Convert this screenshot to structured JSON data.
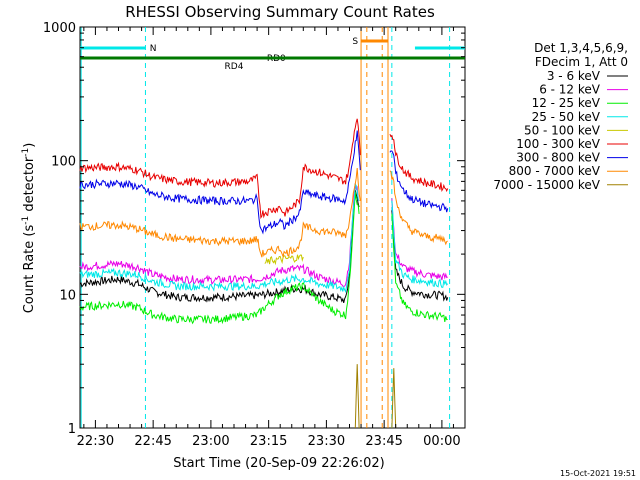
{
  "chart_data": {
    "type": "line",
    "title": "RHESSI Observing Summary Count Rates",
    "xlabel": "Start Time (20-Sep-09 22:26:02)",
    "ylabel_main": "Count Rate (s",
    "ylabel_sup1": "-1",
    "ylabel_mid": " detector",
    "ylabel_sup2": "-1",
    "ylabel_end": ")",
    "yscale": "log",
    "ylim": [
      1,
      1000
    ],
    "xlim_minutes": [
      0,
      100
    ],
    "xticks": [
      {
        "m": 4,
        "label": "22:30"
      },
      {
        "m": 19,
        "label": "22:45"
      },
      {
        "m": 34,
        "label": "23:00"
      },
      {
        "m": 49,
        "label": "23:15"
      },
      {
        "m": 64,
        "label": "23:30"
      },
      {
        "m": 79,
        "label": "23:45"
      },
      {
        "m": 94,
        "label": "00:00"
      }
    ],
    "yticks": [
      {
        "v": 1,
        "label": "1"
      },
      {
        "v": 10,
        "label": "10"
      },
      {
        "v": 100,
        "label": "100"
      },
      {
        "v": 1000,
        "label": "1000"
      }
    ],
    "legend_header": [
      "Det 1,3,4,5,6,9,",
      "FDecim 1, Att 0"
    ],
    "series": [
      {
        "name": "3 - 6 keV",
        "color": "#000000",
        "points": [
          [
            0,
            12
          ],
          [
            10,
            13
          ],
          [
            15,
            12
          ],
          [
            19,
            10.5
          ],
          [
            25,
            9.5
          ],
          [
            35,
            9.5
          ],
          [
            46,
            9.8
          ],
          [
            48,
            10
          ],
          [
            52,
            10.5
          ],
          [
            55,
            11
          ],
          [
            58,
            11
          ],
          [
            62,
            10
          ],
          [
            66,
            9.5
          ],
          [
            69,
            9
          ],
          [
            70,
            14
          ],
          [
            71.5,
            60
          ],
          [
            72.5,
            45
          ]
        ]
      },
      {
        "name": "6 - 12 keV",
        "color": "#e800e8",
        "points": [
          [
            0,
            16
          ],
          [
            10,
            17
          ],
          [
            15,
            16
          ],
          [
            19,
            14
          ],
          [
            25,
            13
          ],
          [
            35,
            12.8
          ],
          [
            46,
            13
          ],
          [
            48,
            13.5
          ],
          [
            52,
            15
          ],
          [
            55,
            15.5
          ],
          [
            58,
            15.5
          ],
          [
            62,
            13.5
          ],
          [
            66,
            12.5
          ],
          [
            69,
            12
          ],
          [
            70,
            18
          ],
          [
            71.5,
            70
          ],
          [
            72.5,
            50
          ]
        ]
      },
      {
        "name": "12 - 25 keV",
        "color": "#00ee00",
        "points": [
          [
            0,
            8
          ],
          [
            10,
            8.5
          ],
          [
            15,
            8
          ],
          [
            19,
            7
          ],
          [
            25,
            6.5
          ],
          [
            35,
            6.5
          ],
          [
            46,
            7
          ],
          [
            48,
            8
          ],
          [
            52,
            10
          ],
          [
            55,
            11
          ],
          [
            58,
            11.5
          ],
          [
            62,
            9
          ],
          [
            66,
            7.5
          ],
          [
            69,
            7
          ],
          [
            70,
            12
          ],
          [
            71.5,
            60
          ],
          [
            72.5,
            40
          ]
        ]
      },
      {
        "name": "25 - 50 keV",
        "color": "#00e8e8",
        "points": [
          [
            0,
            14
          ],
          [
            10,
            14.5
          ],
          [
            15,
            14
          ],
          [
            19,
            12.5
          ],
          [
            25,
            11.5
          ],
          [
            35,
            11.5
          ],
          [
            46,
            11.5
          ],
          [
            48,
            12
          ],
          [
            52,
            12.5
          ],
          [
            55,
            13
          ],
          [
            58,
            13
          ],
          [
            62,
            12
          ],
          [
            66,
            11.5
          ],
          [
            69,
            11
          ],
          [
            70,
            16
          ],
          [
            71.5,
            70
          ],
          [
            72.5,
            50
          ]
        ]
      },
      {
        "name": "50 - 100 keV",
        "color": "#c8c800",
        "points": [
          [
            48,
            17
          ],
          [
            50,
            18
          ],
          [
            54,
            18.5
          ],
          [
            58,
            19
          ]
        ]
      },
      {
        "name": "100 - 300 keV",
        "color": "#e80000",
        "points": [
          [
            0,
            88
          ],
          [
            10,
            90
          ],
          [
            15,
            85
          ],
          [
            19,
            75
          ],
          [
            25,
            70
          ],
          [
            35,
            68
          ],
          [
            44,
            70
          ],
          [
            46,
            74
          ],
          [
            47,
            40
          ],
          [
            52,
            45
          ],
          [
            53,
            40
          ],
          [
            57,
            50
          ],
          [
            58,
            90
          ],
          [
            62,
            82
          ],
          [
            66,
            75
          ],
          [
            69,
            70
          ],
          [
            70,
            90
          ],
          [
            71,
            150
          ],
          [
            72,
            220
          ],
          [
            72.8,
            110
          ]
        ]
      },
      {
        "name": "300 - 800 keV",
        "color": "#0000e8",
        "points": [
          [
            0,
            66
          ],
          [
            10,
            68
          ],
          [
            15,
            64
          ],
          [
            19,
            56
          ],
          [
            25,
            52
          ],
          [
            35,
            50
          ],
          [
            44,
            50
          ],
          [
            46,
            52
          ],
          [
            47,
            30
          ],
          [
            52,
            35
          ],
          [
            53,
            32
          ],
          [
            57,
            40
          ],
          [
            58,
            58
          ],
          [
            62,
            54
          ],
          [
            66,
            52
          ],
          [
            69,
            50
          ],
          [
            70,
            70
          ],
          [
            71,
            110
          ],
          [
            72,
            160
          ],
          [
            72.8,
            85
          ]
        ]
      },
      {
        "name": "800 - 7000 keV",
        "color": "#ff8800",
        "points": [
          [
            0,
            32
          ],
          [
            10,
            33
          ],
          [
            15,
            31
          ],
          [
            19,
            28
          ],
          [
            25,
            26
          ],
          [
            35,
            25
          ],
          [
            44,
            25
          ],
          [
            46,
            26
          ],
          [
            47,
            20
          ],
          [
            52,
            22
          ],
          [
            53,
            20
          ],
          [
            57,
            23
          ],
          [
            58,
            32
          ],
          [
            62,
            30
          ],
          [
            66,
            29
          ],
          [
            69,
            28
          ],
          [
            70,
            35
          ],
          [
            71,
            60
          ],
          [
            72,
            85
          ],
          [
            72.8,
            50
          ]
        ]
      },
      {
        "name": "7000 - 15000 keV",
        "color": "#a08000",
        "points": [
          [
            71.5,
            1
          ],
          [
            72,
            3
          ],
          [
            72.5,
            1
          ]
        ]
      }
    ],
    "post_series": {
      "3 - 6 keV": [
        [
          81,
          45
        ],
        [
          82,
          15
        ],
        [
          84,
          11.5
        ],
        [
          86,
          10.5
        ],
        [
          90,
          10
        ],
        [
          94,
          9.8
        ],
        [
          95.5,
          9.5
        ]
      ],
      "6 - 12 keV": [
        [
          81,
          50
        ],
        [
          82,
          20
        ],
        [
          84,
          16
        ],
        [
          86,
          15
        ],
        [
          90,
          14
        ],
        [
          94,
          13.5
        ],
        [
          95.5,
          13.5
        ]
      ],
      "12 - 25 keV": [
        [
          81,
          40
        ],
        [
          82,
          12
        ],
        [
          84,
          8.5
        ],
        [
          86,
          7.5
        ],
        [
          90,
          7
        ],
        [
          94,
          6.8
        ],
        [
          95.5,
          6.5
        ]
      ],
      "25 - 50 keV": [
        [
          81,
          50
        ],
        [
          82,
          18
        ],
        [
          84,
          14
        ],
        [
          86,
          13
        ],
        [
          90,
          12.5
        ],
        [
          94,
          12
        ],
        [
          95.5,
          12
        ]
      ],
      "100 - 300 keV": [
        [
          80.5,
          160
        ],
        [
          81.5,
          150
        ],
        [
          82,
          110
        ],
        [
          84,
          85
        ],
        [
          86,
          75
        ],
        [
          90,
          68
        ],
        [
          94,
          64
        ],
        [
          95.5,
          62
        ]
      ],
      "300 - 800 keV": [
        [
          80.5,
          120
        ],
        [
          81.5,
          110
        ],
        [
          82,
          80
        ],
        [
          84,
          60
        ],
        [
          86,
          52
        ],
        [
          90,
          47
        ],
        [
          94,
          45
        ],
        [
          95.5,
          44
        ]
      ],
      "800 - 7000 keV": [
        [
          80.5,
          80
        ],
        [
          81.5,
          70
        ],
        [
          82,
          50
        ],
        [
          84,
          35
        ],
        [
          86,
          30
        ],
        [
          90,
          27
        ],
        [
          94,
          26
        ],
        [
          95.5,
          25
        ]
      ],
      "7000 - 15000 keV": [
        [
          81,
          1
        ],
        [
          81.5,
          2.8
        ],
        [
          82,
          1
        ]
      ]
    },
    "flags": [
      {
        "label": "N",
        "color": "#00e8e8",
        "segments": [
          [
            0,
            17
          ],
          [
            87,
            100
          ]
        ],
        "level": "top"
      },
      {
        "label": "RD0",
        "color": "#007800",
        "segments": [
          [
            0,
            100
          ]
        ],
        "level": "second"
      },
      {
        "label": "RD4",
        "color": "#007800",
        "segments": [
          [
            44,
            57
          ]
        ],
        "level": "third"
      },
      {
        "label": "S",
        "color": "#ff8800",
        "segments": [
          [
            73,
            80
          ]
        ],
        "level": "s"
      }
    ],
    "vlines": [
      {
        "m": 17,
        "color": "#00e8e8",
        "style": "dashed"
      },
      {
        "m": 81,
        "color": "#00e8e8",
        "style": "dashed"
      },
      {
        "m": 96,
        "color": "#00e8e8",
        "style": "dashed"
      },
      {
        "m": 0.3,
        "color": "#00e8e8",
        "style": "solid"
      },
      {
        "m": 73,
        "color": "#ff8800",
        "style": "solid"
      },
      {
        "m": 80,
        "color": "#ff8800",
        "style": "solid"
      },
      {
        "m": 74.5,
        "color": "#ff8800",
        "style": "dashed"
      },
      {
        "m": 78.5,
        "color": "#ff8800",
        "style": "dashed"
      }
    ],
    "timestamp": "15-Oct-2021 19:51"
  }
}
